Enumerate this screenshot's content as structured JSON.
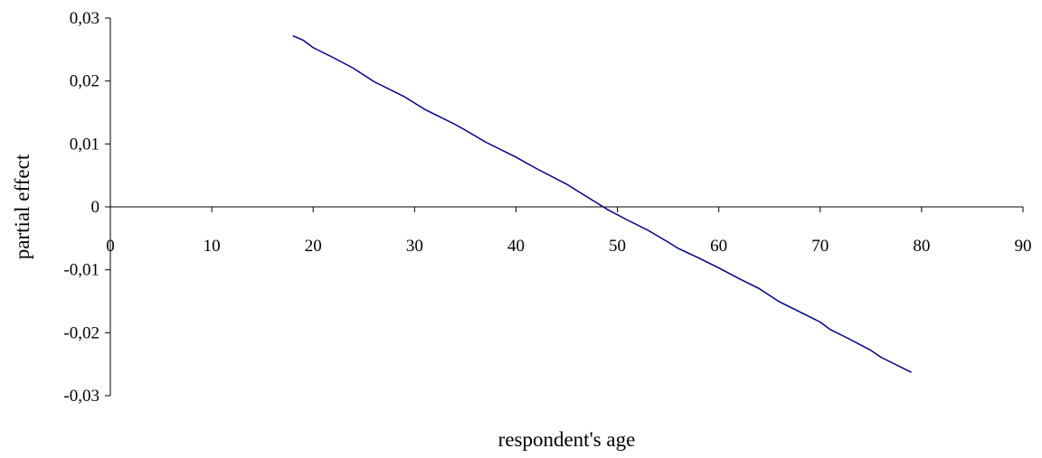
{
  "chart_data": {
    "type": "line",
    "title": "",
    "xlabel": "respondent's age",
    "ylabel": "partial effect",
    "xlim": [
      0,
      90
    ],
    "ylim": [
      -0.03,
      0.03
    ],
    "x_ticks": [
      "0",
      "10",
      "20",
      "30",
      "40",
      "50",
      "60",
      "70",
      "80",
      "90"
    ],
    "y_ticks": [
      "0,03",
      "0,02",
      "0,01",
      "0",
      "-0,01",
      "-0,02",
      "-0,03"
    ],
    "grid": false,
    "legend": "none",
    "line_color": "#000080",
    "series": [
      {
        "x": [
          18,
          19,
          20,
          22,
          24,
          26,
          29,
          31,
          34,
          35,
          37,
          40,
          42,
          45,
          47,
          49,
          51,
          53,
          55,
          56,
          58,
          60,
          62,
          64,
          66,
          68,
          70,
          71,
          73,
          75,
          76,
          79
        ],
        "values": [
          0.0272,
          0.0265,
          0.0253,
          0.0237,
          0.022,
          0.0199,
          0.0175,
          0.0155,
          0.0131,
          0.0122,
          0.0103,
          0.0079,
          0.0061,
          0.0036,
          0.0016,
          -0.0004,
          -0.0021,
          -0.0037,
          -0.0056,
          -0.0066,
          -0.0081,
          -0.0097,
          -0.0114,
          -0.013,
          -0.0151,
          -0.0167,
          -0.0183,
          -0.0195,
          -0.0211,
          -0.0228,
          -0.0239,
          -0.0263
        ]
      }
    ]
  }
}
